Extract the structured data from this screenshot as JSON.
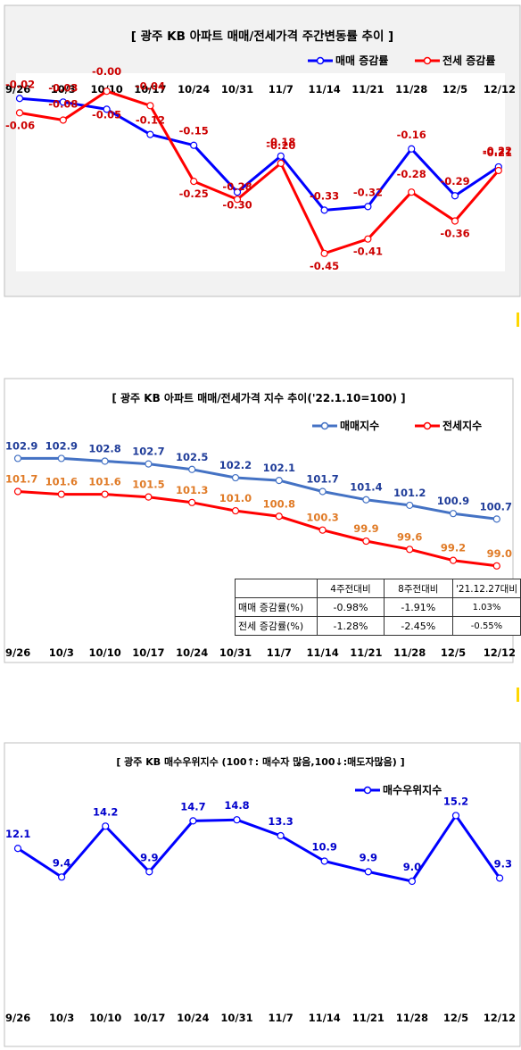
{
  "chart_data": [
    {
      "type": "line",
      "title": "[ 광주  KB 아파트 매매/전세가격 주간변동률 추이 ]",
      "categories": [
        "9/26",
        "10/3",
        "10/10",
        "10/17",
        "10/24",
        "10/31",
        "11/7",
        "11/14",
        "11/21",
        "11/28",
        "12/5",
        "12/12"
      ],
      "series": [
        {
          "name": "매매 증감률",
          "color": "#0000ff",
          "label_color": "#cc0000",
          "values": [
            -0.02,
            -0.03,
            -0.05,
            -0.12,
            -0.15,
            -0.28,
            -0.18,
            -0.33,
            -0.32,
            -0.16,
            -0.29,
            -0.21
          ]
        },
        {
          "name": "전세 증감률",
          "color": "#ff0000",
          "label_color": "#cc0000",
          "values": [
            -0.06,
            -0.08,
            -0.0,
            -0.04,
            -0.25,
            -0.3,
            -0.2,
            -0.45,
            -0.41,
            -0.28,
            -0.36,
            -0.22
          ]
        }
      ],
      "ylim": [
        -0.5,
        0.05
      ],
      "legend_position": "top-right",
      "grid": false
    },
    {
      "type": "line",
      "title": "[  광주  KB 아파트 매매/전세가격 지수 추이('22.1.10=100)  ]",
      "categories": [
        "9/26",
        "10/3",
        "10/10",
        "10/17",
        "10/24",
        "10/31",
        "11/7",
        "11/14",
        "11/21",
        "11/28",
        "12/5",
        "12/12"
      ],
      "series": [
        {
          "name": "매매지수",
          "color": "#4472c4",
          "label_color": "#1f3c99",
          "values": [
            102.9,
            102.9,
            102.8,
            102.7,
            102.5,
            102.2,
            102.1,
            101.7,
            101.4,
            101.2,
            100.9,
            100.7
          ]
        },
        {
          "name": "전세지수",
          "color": "#ff0000",
          "label_color": "#e07b27",
          "values": [
            101.7,
            101.6,
            101.6,
            101.5,
            101.3,
            101.0,
            100.8,
            100.3,
            99.9,
            99.6,
            99.2,
            99.0
          ]
        }
      ],
      "ylim": [
        98.8,
        103.4
      ],
      "legend_position": "top-right",
      "grid": false
    },
    {
      "type": "line",
      "title": "[  광주  KB 매수우위지수 (100↑: 매수자 많음,100↓:매도자많음)  ]",
      "categories": [
        "9/26",
        "10/3",
        "10/10",
        "10/17",
        "10/24",
        "10/31",
        "11/7",
        "11/14",
        "11/21",
        "11/28",
        "12/5",
        "12/12"
      ],
      "series": [
        {
          "name": "매수우위지수",
          "color": "#0000ff",
          "label_color": "#0000cc",
          "values": [
            12.1,
            9.4,
            14.2,
            9.9,
            14.7,
            14.8,
            13.3,
            10.9,
            9.9,
            9.0,
            15.2,
            9.3
          ]
        }
      ],
      "ylim": [
        -2.2,
        16.5
      ],
      "legend_position": "top-right",
      "grid": false
    }
  ],
  "change_table": {
    "headers": [
      "4주전대비",
      "8주전대비",
      "'21.12.27대비"
    ],
    "rows": [
      {
        "label": "매매 증감률(%)",
        "values": [
          "-0.98%",
          "-1.91%",
          "1.03%"
        ]
      },
      {
        "label": "전세 증감률(%)",
        "values": [
          "-1.28%",
          "-2.45%",
          "-0.55%"
        ]
      }
    ]
  },
  "colors": {
    "panel_bg": "#f2f2f2",
    "border": "#bfbfbf",
    "plot_bg": "#ffffff"
  }
}
